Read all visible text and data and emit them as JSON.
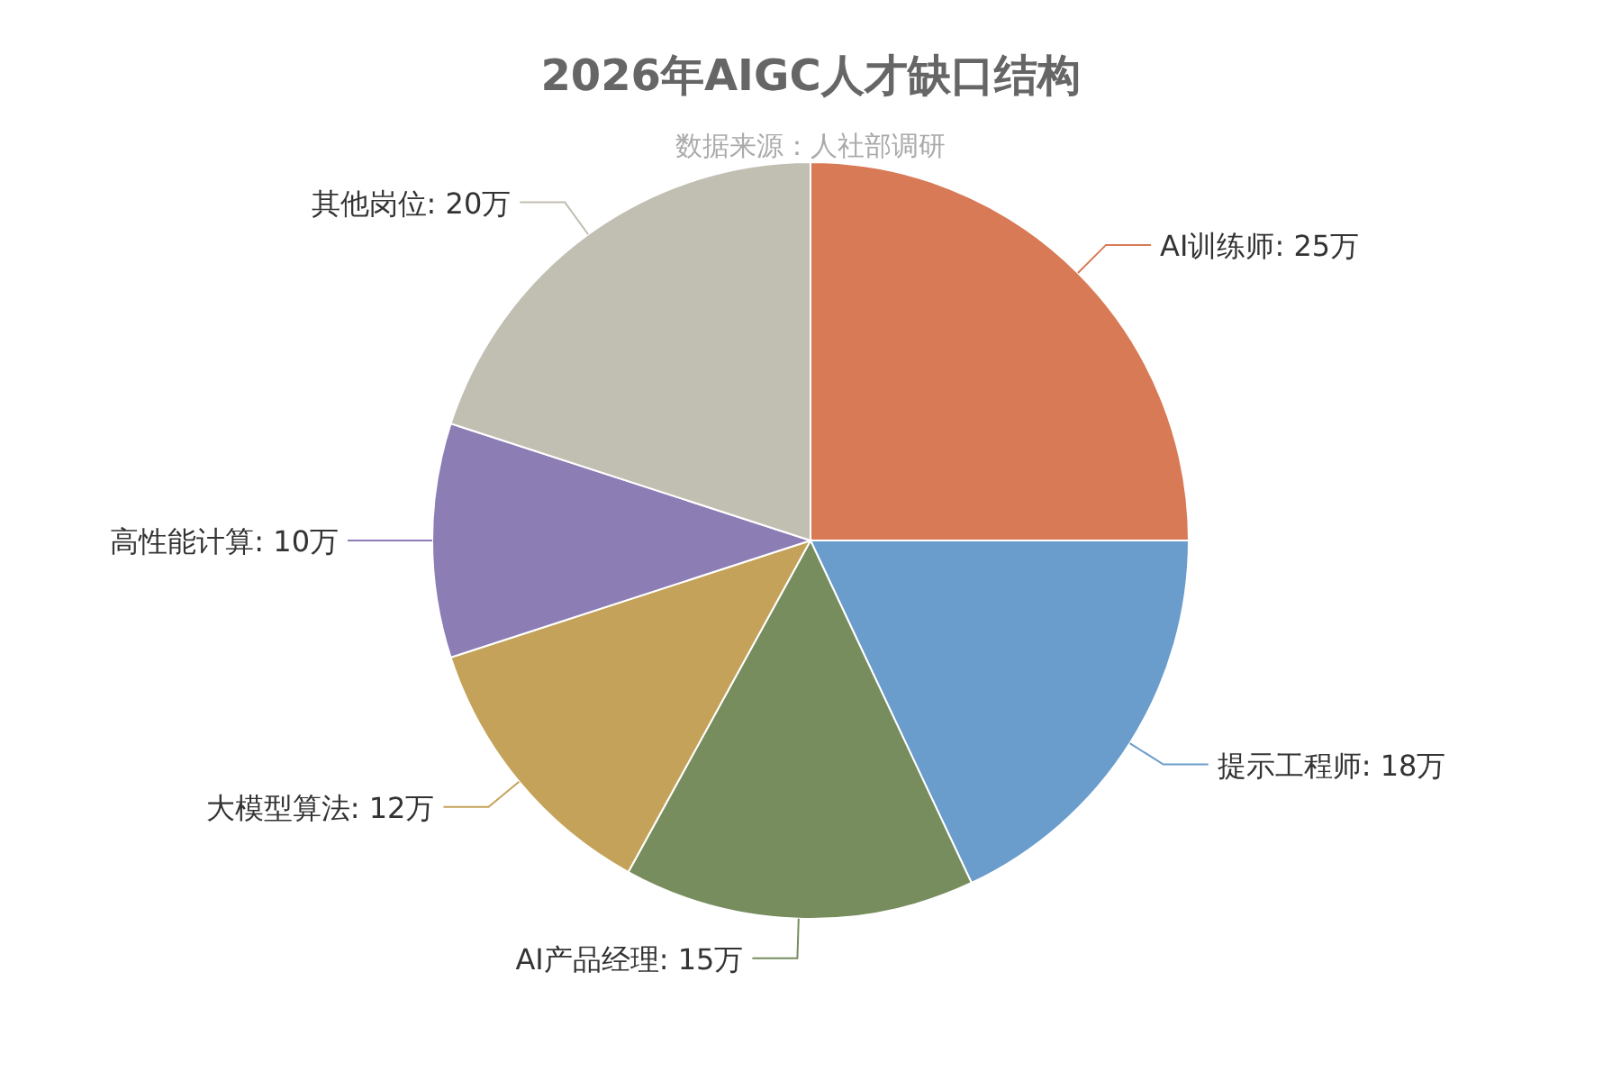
{
  "chart_data": {
    "type": "pie",
    "title": "2026年AIGC人才缺口结构",
    "subtitle": "数据来源：人社部调研",
    "categories": [
      "AI训练师",
      "提示工程师",
      "AI产品经理",
      "大模型算法",
      "高性能计算",
      "其他岗位"
    ],
    "values": [
      25,
      18,
      15,
      12,
      10,
      20
    ],
    "value_labels": [
      "25万",
      "18万",
      "15万",
      "12万",
      "10万",
      "20万"
    ],
    "colors": [
      "#d87a56",
      "#6a9ccc",
      "#778d5e",
      "#c4a25a",
      "#8c7db5",
      "#c1beb2"
    ]
  }
}
